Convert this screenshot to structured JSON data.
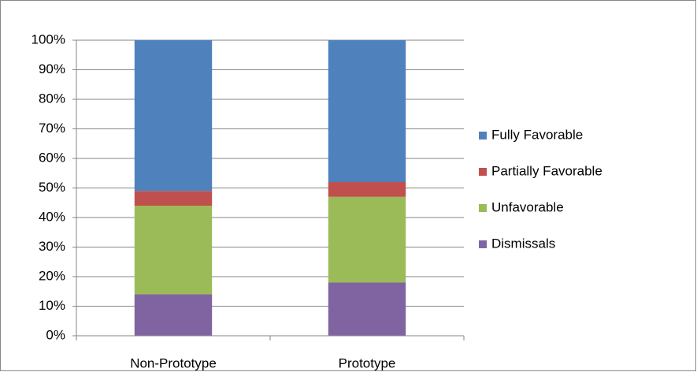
{
  "chart_data": {
    "type": "stacked_bar",
    "categories": [
      "Non-Prototype",
      "Prototype"
    ],
    "series": [
      {
        "name": "Fully Favorable",
        "color": "#4f81bd",
        "values": [
          51,
          48
        ]
      },
      {
        "name": "Partially Favorable",
        "color": "#c0504d",
        "values": [
          5,
          5
        ]
      },
      {
        "name": "Unfavorable",
        "color": "#9bbb59",
        "values": [
          30,
          29
        ]
      },
      {
        "name": "Dismissals",
        "color": "#8064a2",
        "values": [
          14,
          18
        ]
      }
    ],
    "ylim": [
      0,
      100
    ],
    "yticks": [
      {
        "value": 0,
        "label": "0%"
      },
      {
        "value": 10,
        "label": "10%"
      },
      {
        "value": 20,
        "label": "20%"
      },
      {
        "value": 30,
        "label": "30%"
      },
      {
        "value": 40,
        "label": "40%"
      },
      {
        "value": 50,
        "label": "50%"
      },
      {
        "value": 60,
        "label": "60%"
      },
      {
        "value": 70,
        "label": "70%"
      },
      {
        "value": 80,
        "label": "80%"
      },
      {
        "value": 90,
        "label": "90%"
      },
      {
        "value": 100,
        "label": "100%"
      }
    ],
    "grid": true,
    "legend": "right"
  }
}
